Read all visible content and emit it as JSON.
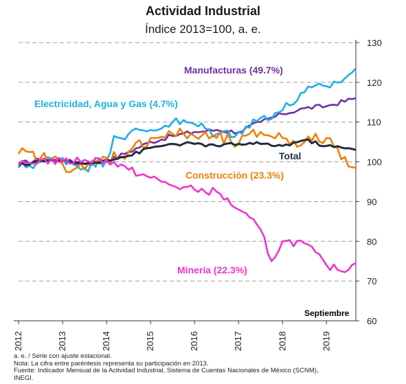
{
  "header": {
    "title": "Actividad Industrial",
    "subtitle": "Índice 2013=100, a. e."
  },
  "chart_data": {
    "type": "line",
    "title": "Actividad Industrial",
    "subtitle": "Índice 2013=100, a. e.",
    "xlabel": "",
    "ylabel": "",
    "ylim": [
      60,
      130
    ],
    "yticks": [
      60,
      70,
      80,
      90,
      100,
      110,
      120,
      130
    ],
    "y_axis_side": "right",
    "grid": "horizontal dashed",
    "x_range": [
      "2012-01",
      "2019-09"
    ],
    "x_tick_labels": [
      "2012",
      "2013",
      "2014",
      "2015",
      "2016",
      "2017",
      "2018",
      "2019"
    ],
    "period_label": "Septiembre",
    "series": [
      {
        "name": "Manufacturas (49.7%)",
        "color": "#7030a0",
        "anchors": [
          [
            "2012-01",
            99.5
          ],
          [
            "2012-07",
            100.5
          ],
          [
            "2013-01",
            100.3
          ],
          [
            "2013-07",
            99.5
          ],
          [
            "2014-01",
            100.0
          ],
          [
            "2014-07",
            102.5
          ],
          [
            "2015-01",
            105.0
          ],
          [
            "2015-07",
            106.5
          ],
          [
            "2016-01",
            107.5
          ],
          [
            "2016-07",
            108.0
          ],
          [
            "2017-01",
            107.5
          ],
          [
            "2017-07",
            110.0
          ],
          [
            "2018-01",
            112.0
          ],
          [
            "2018-07",
            113.5
          ],
          [
            "2019-01",
            114.0
          ],
          [
            "2019-09",
            116.0
          ]
        ]
      },
      {
        "name": "Electricidad, Agua y Gas (4.7%)",
        "color": "#1eaee8",
        "anchors": [
          [
            "2012-01",
            98.5
          ],
          [
            "2012-07",
            100.0
          ],
          [
            "2013-01",
            101.0
          ],
          [
            "2013-07",
            98.5
          ],
          [
            "2014-01",
            100.5
          ],
          [
            "2014-03",
            106.5
          ],
          [
            "2014-07",
            107.0
          ],
          [
            "2015-01",
            108.0
          ],
          [
            "2015-07",
            110.0
          ],
          [
            "2016-01",
            109.5
          ],
          [
            "2016-07",
            107.0
          ],
          [
            "2017-01",
            107.5
          ],
          [
            "2017-07",
            111.0
          ],
          [
            "2018-01",
            113.0
          ],
          [
            "2018-07",
            117.5
          ],
          [
            "2019-01",
            119.0
          ],
          [
            "2019-06",
            121.0
          ],
          [
            "2019-09",
            123.5
          ]
        ]
      },
      {
        "name": "Construcción (23.3%)",
        "color": "#f07f09",
        "anchors": [
          [
            "2012-01",
            102.0
          ],
          [
            "2012-07",
            101.0
          ],
          [
            "2013-01",
            99.5
          ],
          [
            "2013-07",
            98.0
          ],
          [
            "2014-01",
            101.0
          ],
          [
            "2014-07",
            102.5
          ],
          [
            "2015-01",
            106.0
          ],
          [
            "2015-07",
            107.0
          ],
          [
            "2016-01",
            106.5
          ],
          [
            "2016-07",
            106.0
          ],
          [
            "2017-01",
            104.5
          ],
          [
            "2017-07",
            107.5
          ],
          [
            "2018-01",
            106.0
          ],
          [
            "2018-07",
            105.0
          ],
          [
            "2019-01",
            106.0
          ],
          [
            "2019-09",
            98.5
          ]
        ]
      },
      {
        "name": "Total",
        "color": "#1f2d3d",
        "anchors": [
          [
            "2012-01",
            99.0
          ],
          [
            "2012-07",
            100.3
          ],
          [
            "2013-01",
            100.2
          ],
          [
            "2013-07",
            99.5
          ],
          [
            "2014-01",
            100.5
          ],
          [
            "2014-07",
            101.5
          ],
          [
            "2015-01",
            103.5
          ],
          [
            "2015-07",
            104.5
          ],
          [
            "2016-01",
            104.5
          ],
          [
            "2016-07",
            104.0
          ],
          [
            "2017-01",
            104.5
          ],
          [
            "2017-07",
            104.5
          ],
          [
            "2018-01",
            104.0
          ],
          [
            "2018-07",
            105.5
          ],
          [
            "2019-01",
            104.0
          ],
          [
            "2019-09",
            103.0
          ]
        ]
      },
      {
        "name": "Minería (22.3%)",
        "color": "#f033cc",
        "anchors": [
          [
            "2012-01",
            99.0
          ],
          [
            "2012-07",
            100.5
          ],
          [
            "2013-01",
            100.0
          ],
          [
            "2013-07",
            100.5
          ],
          [
            "2014-01",
            100.5
          ],
          [
            "2014-07",
            98.0
          ],
          [
            "2015-01",
            96.0
          ],
          [
            "2015-07",
            94.0
          ],
          [
            "2016-01",
            93.0
          ],
          [
            "2016-07",
            92.5
          ],
          [
            "2017-01",
            88.0
          ],
          [
            "2017-07",
            83.0
          ],
          [
            "2017-10",
            75.0
          ],
          [
            "2018-01",
            80.0
          ],
          [
            "2018-07",
            79.5
          ],
          [
            "2019-01",
            74.0
          ],
          [
            "2019-05",
            72.5
          ],
          [
            "2019-09",
            74.5
          ]
        ]
      }
    ]
  },
  "labels": {
    "manufacturas": "Manufacturas (49.7%)",
    "electricidad": "Electricidad, Agua y Gas (4.7%)",
    "total": "Total",
    "construccion": "Construcción (23.3%)",
    "mineria": "Minería (22.3%)",
    "period": "Septiembre"
  },
  "notes": {
    "line1": "a. e. / Serie con ajuste estacional.",
    "line2": "Nota: La cifra entre paréntesis representa su participación en 2013.",
    "line3": "Fuente: Indicador Mensual de la Actividad Industrial, Sistema de Cuentas Nacionales de México (SCNM),",
    "line4": "INEGI."
  }
}
